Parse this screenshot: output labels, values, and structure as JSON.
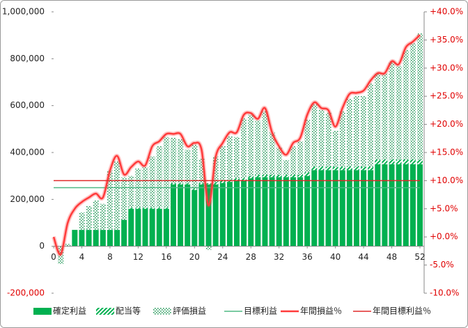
{
  "chart_data": {
    "type": "bar",
    "x": [
      0,
      1,
      2,
      3,
      4,
      5,
      6,
      7,
      8,
      9,
      10,
      11,
      12,
      13,
      14,
      15,
      16,
      17,
      18,
      19,
      20,
      21,
      22,
      23,
      24,
      25,
      26,
      27,
      28,
      29,
      30,
      31,
      32,
      33,
      34,
      35,
      36,
      37,
      38,
      39,
      40,
      41,
      42,
      43,
      44,
      45,
      46,
      47,
      48,
      49,
      50,
      51,
      52
    ],
    "xlim": [
      0,
      52
    ],
    "xticks": [
      0,
      4,
      8,
      12,
      16,
      20,
      24,
      28,
      32,
      36,
      40,
      44,
      48,
      52
    ],
    "ylim": [
      -200000,
      1000000
    ],
    "yticks": [
      {
        "value": -200000,
        "label": "-200,000"
      },
      0,
      {
        "value": 200000,
        "label": "200,000"
      },
      {
        "value": 400000,
        "label": "400,000"
      },
      {
        "value": 600000,
        "label": "600,000"
      },
      {
        "value": 800000,
        "label": "800,000"
      },
      {
        "value": 1000000,
        "label": "1,000,000"
      }
    ],
    "y2lim": [
      -10,
      40
    ],
    "y2ticks": [
      {
        "value": -10,
        "label": "-10.0%"
      },
      {
        "value": -5,
        "label": "-5.0%"
      },
      {
        "value": 0,
        "label": "+0.0%"
      },
      {
        "value": 5,
        "label": "+5.0%"
      },
      {
        "value": 10,
        "label": "+10.0%"
      },
      {
        "value": 15,
        "label": "+15.0%"
      },
      {
        "value": 20,
        "label": "+20.0%"
      },
      {
        "value": 25,
        "label": "+25.0%"
      },
      {
        "value": 30,
        "label": "+30.0%"
      },
      {
        "value": 35,
        "label": "+35.0%"
      },
      {
        "value": 40,
        "label": "+40.0%"
      }
    ],
    "legend": "bottom",
    "series": [
      {
        "name": "確定利益",
        "type": "bar",
        "pattern": "solid",
        "color": "#00b050",
        "values": [
          0,
          0,
          0,
          70000,
          70000,
          70000,
          70000,
          70000,
          70000,
          70000,
          113000,
          160000,
          160000,
          160000,
          160000,
          160000,
          160000,
          264000,
          264000,
          264000,
          240000,
          264000,
          264000,
          264000,
          270000,
          275000,
          280000,
          280000,
          290000,
          295000,
          295000,
          295000,
          295000,
          295000,
          295000,
          295000,
          300000,
          325000,
          325000,
          325000,
          325000,
          325000,
          325000,
          325000,
          325000,
          325000,
          350000,
          350000,
          350000,
          350000,
          350000,
          350000,
          350000
        ]
      },
      {
        "name": "配当等",
        "type": "bar",
        "pattern": "hatch",
        "color": "#00b050",
        "values": [
          0,
          0,
          0,
          0,
          0,
          0,
          0,
          0,
          0,
          0,
          0,
          5000,
          5000,
          5000,
          5000,
          5000,
          5000,
          5000,
          5000,
          5000,
          5000,
          5000,
          5000,
          10000,
          10000,
          10000,
          10000,
          10000,
          10000,
          10000,
          10000,
          10000,
          10000,
          10000,
          10000,
          10000,
          15000,
          15000,
          15000,
          15000,
          15000,
          15000,
          15000,
          15000,
          15000,
          15000,
          20000,
          20000,
          20000,
          20000,
          20000,
          20000,
          20000
        ]
      },
      {
        "name": "評価損益",
        "type": "bar",
        "pattern": "dots",
        "color": "#2e9e62",
        "values": [
          0,
          -75000,
          10000,
          0,
          75000,
          102000,
          126000,
          111000,
          253000,
          292000,
          181000,
          135000,
          167000,
          173000,
          218000,
          262000,
          301000,
          194000,
          188000,
          143000,
          188000,
          105000,
          -15000,
          109000,
          147000,
          184000,
          176000,
          256000,
          261000,
          232000,
          271000,
          182000,
          116000,
          63000,
          122000,
          143000,
          225000,
          265000,
          242000,
          230000,
          153000,
          236000,
          289000,
          301000,
          301000,
          354000,
          369000,
          369000,
          419000,
          399000,
          467000,
          496000,
          538000
        ]
      },
      {
        "name": "目標利益",
        "type": "hline",
        "color": "#4fb884",
        "value": 250000
      },
      {
        "name": "年間損益％",
        "type": "line",
        "axis": "y2",
        "color": "#ff3b3b",
        "values": [
          0,
          -3.1,
          2.5,
          5,
          6.2,
          7,
          7.7,
          7,
          11.8,
          14.4,
          11.1,
          12.4,
          13.4,
          12.7,
          16.1,
          17,
          18.3,
          18.3,
          18.3,
          16.1,
          16.7,
          15.5,
          5.6,
          14.2,
          16.7,
          18.6,
          18.6,
          21.7,
          22,
          21,
          22.9,
          18.6,
          16.1,
          14.6,
          16.7,
          17.6,
          21.7,
          23.9,
          22.9,
          22.5,
          19.6,
          22.9,
          25.4,
          25.6,
          26,
          27.8,
          29.1,
          29.1,
          31.2,
          30.7,
          33.7,
          34.7,
          35.9
        ]
      },
      {
        "name": "年間目標利益％",
        "type": "hline",
        "axis": "y2",
        "color": "#e02a2a",
        "value": 10
      }
    ]
  }
}
